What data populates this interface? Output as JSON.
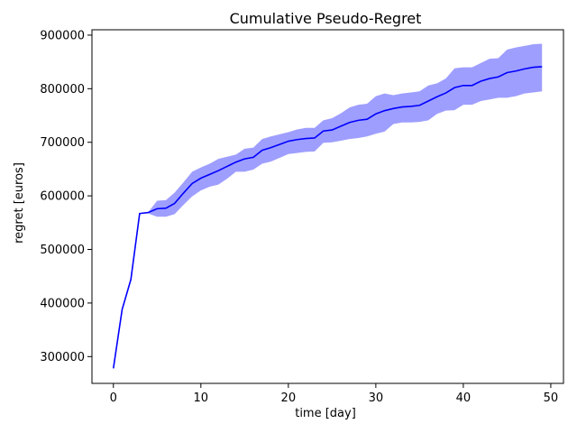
{
  "chart_data": {
    "type": "line",
    "title": "Cumulative Pseudo-Regret",
    "xlabel": "time [day]",
    "ylabel": "regret [euros]",
    "xlim": [
      -2.45,
      51.45
    ],
    "ylim": [
      250000,
      910000
    ],
    "xticks": [
      0,
      10,
      20,
      30,
      40,
      50
    ],
    "xtick_labels": [
      "0",
      "10",
      "20",
      "30",
      "40",
      "50"
    ],
    "yticks": [
      300000,
      400000,
      500000,
      600000,
      700000,
      800000,
      900000
    ],
    "ytick_labels": [
      "300000",
      "400000",
      "500000",
      "600000",
      "700000",
      "800000",
      "900000"
    ],
    "grid": false,
    "colors": {
      "line": "#0000ff",
      "band": "#0000ff",
      "band_opacity": 0.38
    },
    "x": [
      0,
      1,
      2,
      3,
      4,
      5,
      6,
      7,
      8,
      9,
      10,
      11,
      12,
      13,
      14,
      15,
      16,
      17,
      18,
      19,
      20,
      21,
      22,
      23,
      24,
      25,
      26,
      27,
      28,
      29,
      30,
      31,
      32,
      33,
      34,
      35,
      36,
      37,
      38,
      39,
      40,
      41,
      42,
      43,
      44,
      45,
      46,
      47,
      48,
      49
    ],
    "series": [
      {
        "values": [
          278000,
          388000,
          444000,
          567000,
          569000,
          576000,
          577000,
          586000,
          605000,
          623000,
          633000,
          640000,
          647000,
          655000,
          663000,
          669000,
          672000,
          685000,
          690000,
          696000,
          702000,
          705000,
          707000,
          708000,
          721000,
          723000,
          730000,
          737000,
          741000,
          743000,
          753000,
          759000,
          763000,
          766000,
          767000,
          769000,
          777000,
          785000,
          792000,
          802000,
          806000,
          806000,
          814000,
          819000,
          822000,
          830000,
          833000,
          837000,
          840000,
          841000
        ],
        "lower": [
          278000,
          388000,
          444000,
          567000,
          567000,
          561000,
          561000,
          566000,
          583000,
          599000,
          610000,
          617000,
          621000,
          632000,
          645000,
          645000,
          649000,
          660000,
          664000,
          671000,
          678000,
          680000,
          682000,
          683000,
          699000,
          700000,
          703000,
          706000,
          708000,
          711000,
          716000,
          720000,
          734000,
          737000,
          737000,
          738000,
          741000,
          753000,
          759000,
          760000,
          770000,
          770000,
          777000,
          780000,
          783000,
          783000,
          786000,
          791000,
          793000,
          795000
        ],
        "upper": [
          278000,
          388000,
          444000,
          567000,
          570000,
          591000,
          592000,
          606000,
          625000,
          645000,
          653000,
          660000,
          669000,
          673000,
          677000,
          688000,
          690000,
          706000,
          711000,
          715000,
          719000,
          724000,
          727000,
          727000,
          741000,
          745000,
          754000,
          765000,
          770000,
          772000,
          786000,
          791000,
          788000,
          791000,
          793000,
          795000,
          806000,
          810000,
          819000,
          838000,
          840000,
          840000,
          848000,
          856000,
          857000,
          873000,
          877000,
          880000,
          883000,
          884000
        ]
      }
    ]
  }
}
